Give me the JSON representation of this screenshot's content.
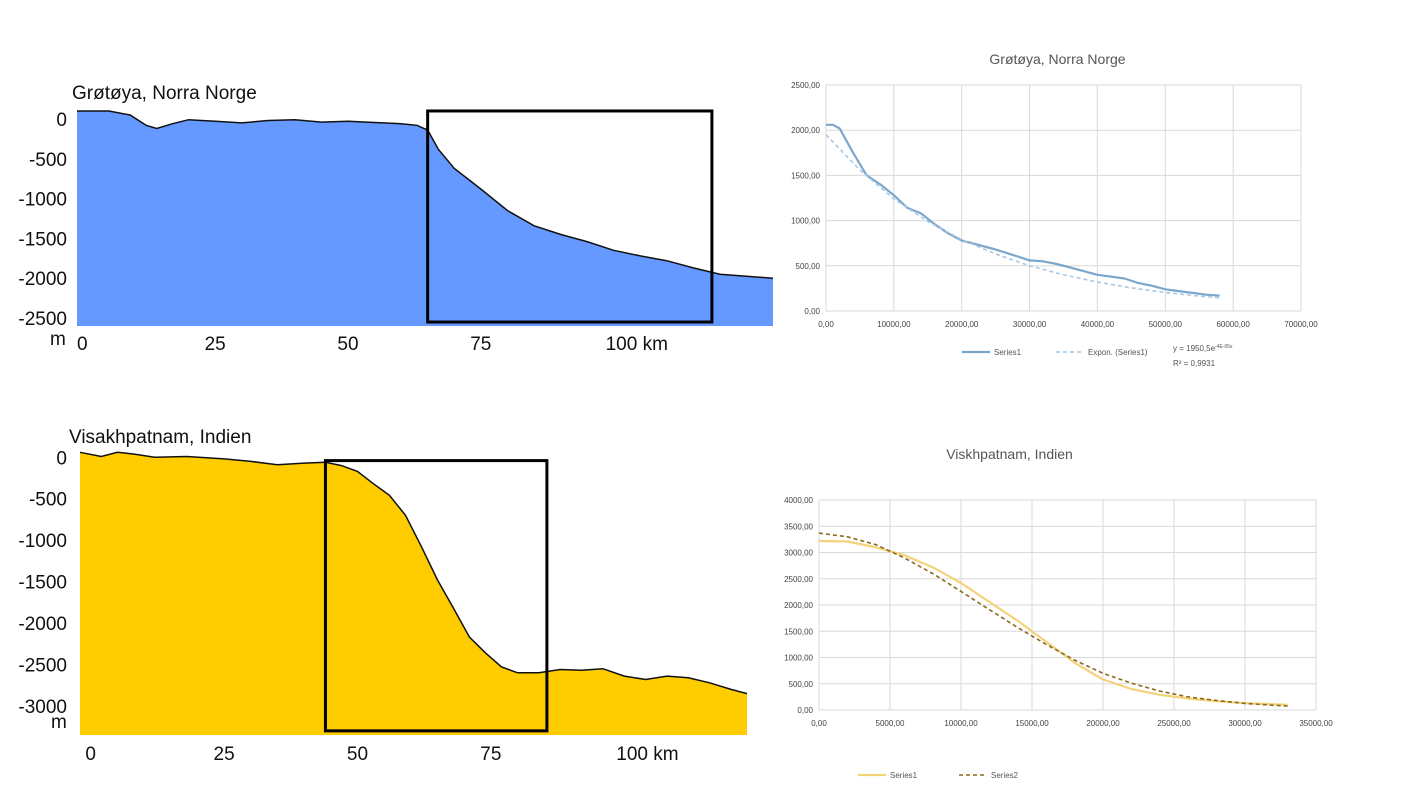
{
  "chart_data": [
    {
      "type": "area",
      "title": "Grøtøya, Norra Norge",
      "unit_label": "m",
      "x_unit": "km",
      "x_tick_labels": [
        "0",
        "25",
        "50",
        "75",
        "100 km"
      ],
      "x_ticks": [
        0,
        25,
        50,
        75,
        100
      ],
      "y_tick_labels": [
        "0",
        "-500",
        "-1000",
        "-1500",
        "-2000",
        "-2500"
      ],
      "y_ticks": [
        0,
        -500,
        -1000,
        -1500,
        -2000,
        -2500
      ],
      "xlim": [
        -1,
        130
      ],
      "ylim": [
        -2600,
        150
      ],
      "fill_color": "#6699ff",
      "x": [
        -1,
        5,
        9,
        12,
        14,
        17,
        20,
        25,
        30,
        35,
        40,
        45,
        50,
        55,
        60,
        63,
        65,
        67,
        70,
        75,
        80,
        85,
        90,
        95,
        100,
        105,
        110,
        115,
        120,
        125,
        130
      ],
      "y": [
        100,
        100,
        50,
        -80,
        -120,
        -60,
        -10,
        -30,
        -50,
        -20,
        -10,
        -40,
        -30,
        -45,
        -60,
        -80,
        -140,
        -380,
        -620,
        -880,
        -1150,
        -1340,
        -1450,
        -1540,
        -1650,
        -1720,
        -1780,
        -1870,
        -1950,
        -1975,
        -2000
      ],
      "highlight_box_x": [
        65,
        118.5
      ],
      "highlight_box_y": [
        -2550,
        100
      ]
    },
    {
      "type": "line",
      "title": "Grøtøya, Norra Norge",
      "xlim": [
        0,
        70000
      ],
      "ylim": [
        0,
        2500
      ],
      "x_tick_labels": [
        "0,00",
        "10000,00",
        "20000,00",
        "30000,00",
        "40000,00",
        "50000,00",
        "60000,00",
        "70000,00"
      ],
      "x_ticks": [
        0,
        10000,
        20000,
        30000,
        40000,
        50000,
        60000,
        70000
      ],
      "y_tick_labels": [
        "0,00",
        "500,00",
        "1000,00",
        "1500,00",
        "2000,00",
        "2500,00"
      ],
      "y_ticks": [
        0,
        500,
        1000,
        1500,
        2000,
        2500
      ],
      "grid": true,
      "series": [
        {
          "name": "Series1",
          "color": "#7ba7cc",
          "x": [
            0,
            1000,
            2000,
            4000,
            6000,
            8000,
            10000,
            12000,
            14000,
            16000,
            18000,
            20000,
            22000,
            25000,
            28000,
            30000,
            32000,
            34000,
            36000,
            38000,
            40000,
            42000,
            44000,
            46000,
            48000,
            50000,
            52000,
            54000,
            56000,
            58000
          ],
          "y": [
            2060,
            2060,
            2020,
            1750,
            1500,
            1400,
            1280,
            1140,
            1080,
            960,
            860,
            780,
            740,
            680,
            610,
            560,
            550,
            520,
            480,
            440,
            400,
            380,
            360,
            310,
            280,
            240,
            220,
            200,
            180,
            170
          ]
        },
        {
          "name": "Expon. (Series1)",
          "color": "#a9c8e4",
          "dashed": true,
          "x": [
            0,
            5000,
            10000,
            15000,
            20000,
            25000,
            30000,
            35000,
            40000,
            45000,
            50000,
            55000,
            58000
          ],
          "y": [
            1950,
            1560,
            1240,
            990,
            790,
            630,
            500,
            400,
            320,
            255,
            205,
            165,
            145
          ]
        }
      ],
      "trendline_label": "y = 1950,5e",
      "trendline_exponent": "-4E-05x",
      "r_squared_label": "R² = 0,9931"
    },
    {
      "type": "area",
      "title": "Visakhpatnam, Indien",
      "unit_label": "m",
      "x_unit": "km",
      "x_tick_labels": [
        "0",
        "25",
        "50",
        "75",
        "100 km"
      ],
      "x_ticks": [
        0,
        25,
        50,
        75,
        100
      ],
      "y_tick_labels": [
        "0",
        "-500",
        "-1000",
        "-1500",
        "-2000",
        "-2500",
        "-3000"
      ],
      "y_ticks": [
        0,
        -500,
        -1000,
        -1500,
        -2000,
        -2500,
        -3000
      ],
      "xlim": [
        -2,
        123
      ],
      "ylim": [
        -3350,
        100
      ],
      "fill_color": "#ffcc00",
      "x": [
        -2,
        2,
        5,
        8,
        12,
        18,
        25,
        30,
        35,
        40,
        44,
        47,
        50,
        53,
        56,
        59,
        62,
        65,
        68,
        71,
        74,
        77,
        80,
        84,
        88,
        92,
        96,
        100,
        104,
        108,
        112,
        116,
        120,
        123
      ],
      "y": [
        60,
        10,
        60,
        40,
        0,
        10,
        -20,
        -50,
        -90,
        -70,
        -60,
        -100,
        -170,
        -320,
        -460,
        -700,
        -1080,
        -1480,
        -1820,
        -2170,
        -2360,
        -2530,
        -2600,
        -2600,
        -2560,
        -2570,
        -2550,
        -2640,
        -2680,
        -2640,
        -2660,
        -2720,
        -2800,
        -2850
      ],
      "highlight_box_x": [
        44,
        85.5
      ],
      "highlight_box_y": [
        -3300,
        -40
      ]
    },
    {
      "type": "line",
      "title": "Viskhpatnam, Indien",
      "xlim": [
        0,
        35000
      ],
      "ylim": [
        0,
        4000
      ],
      "x_tick_labels": [
        "0,00",
        "5000,00",
        "10000,00",
        "15000,00",
        "20000,00",
        "25000,00",
        "30000,00",
        "35000,00"
      ],
      "x_ticks": [
        0,
        5000,
        10000,
        15000,
        20000,
        25000,
        30000,
        35000
      ],
      "y_tick_labels": [
        "0,00",
        "500,00",
        "1000,00",
        "1500,00",
        "2000,00",
        "2500,00",
        "3000,00",
        "3500,00",
        "4000,00"
      ],
      "y_ticks": [
        0,
        500,
        1000,
        1500,
        2000,
        2500,
        3000,
        3500,
        4000
      ],
      "grid": true,
      "series": [
        {
          "name": "Series1",
          "color": "#f3d27a",
          "x": [
            0,
            2000,
            4000,
            6000,
            8000,
            10000,
            12000,
            14000,
            16000,
            18000,
            20000,
            22000,
            24000,
            26000,
            28000,
            30000,
            32000,
            33000
          ],
          "y": [
            3220,
            3210,
            3100,
            2950,
            2720,
            2420,
            2060,
            1700,
            1300,
            900,
            580,
            400,
            290,
            220,
            170,
            130,
            110,
            100
          ]
        },
        {
          "name": "Series2",
          "color": "#8a6a1e",
          "dashed": true,
          "x": [
            0,
            2000,
            4000,
            6000,
            8000,
            10000,
            12000,
            14000,
            16000,
            18000,
            20000,
            22000,
            24000,
            26000,
            28000,
            30000,
            32000,
            33000
          ],
          "y": [
            3370,
            3300,
            3150,
            2900,
            2600,
            2260,
            1910,
            1570,
            1250,
            950,
            700,
            510,
            360,
            250,
            180,
            125,
            90,
            75
          ]
        }
      ]
    }
  ]
}
